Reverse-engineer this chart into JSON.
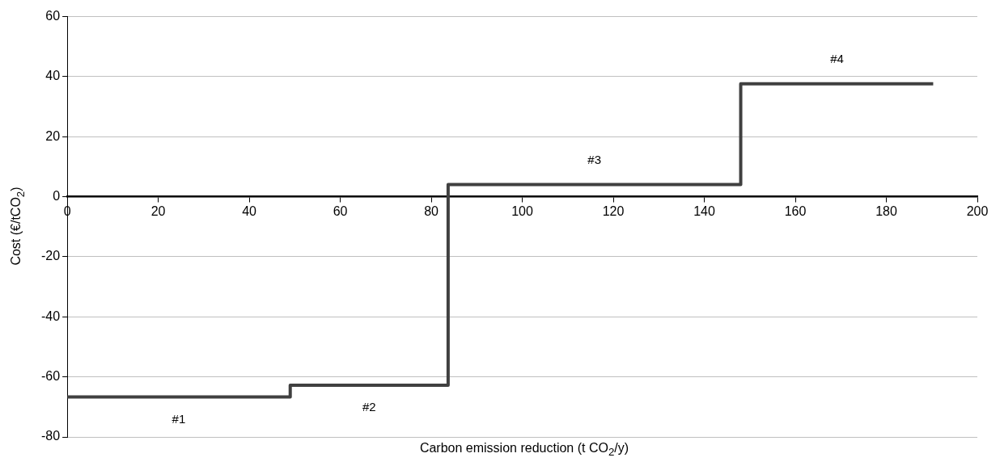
{
  "chart_data": {
    "type": "step",
    "xlabel": "Carbon emission reduction (t CO$_{2}$/y)",
    "ylabel": "Cost (€/tCO$_{2}$)",
    "x": [
      0,
      49,
      83.7,
      148,
      190.3
    ],
    "series": [
      {
        "color": "#404040",
        "values": [
          -66.7,
          -62.8,
          4.1,
          37.6,
          37.6
        ]
      }
    ],
    "xlim": [
      0,
      200
    ],
    "xticks": [
      0,
      20,
      40,
      60,
      80,
      100,
      120,
      140,
      160,
      180,
      200
    ],
    "ylim": [
      -80,
      60
    ],
    "yticks": [
      -80,
      -60,
      -40,
      -20,
      0,
      20,
      40,
      60
    ],
    "grid": "y",
    "legend": false,
    "marker": "none",
    "line_style": "solid",
    "annotations": [
      "#1",
      "#2",
      "#3",
      "#4"
    ]
  }
}
